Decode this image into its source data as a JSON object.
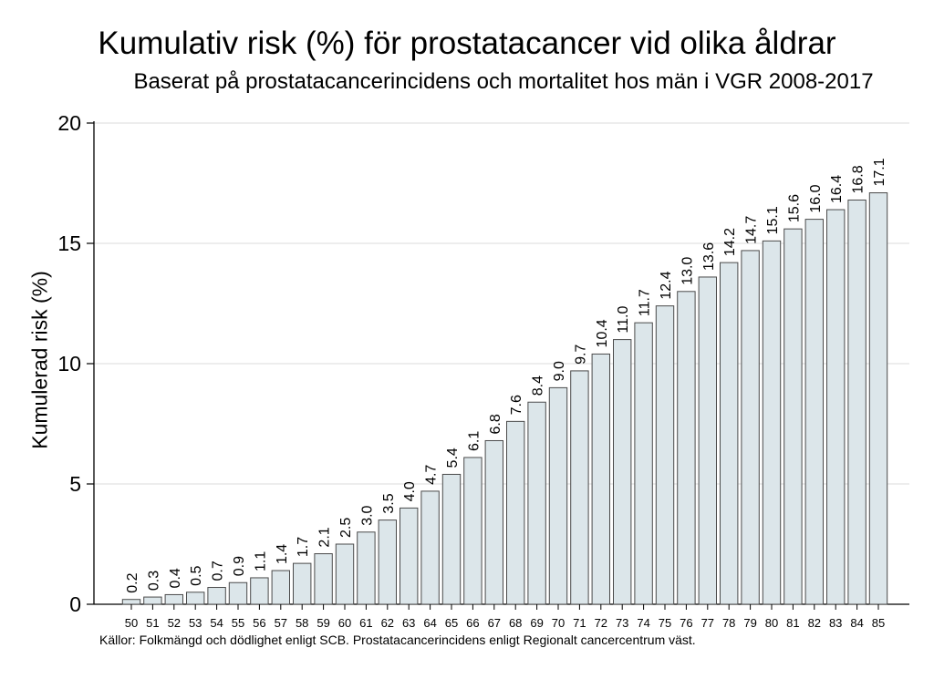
{
  "chart_data": {
    "type": "bar",
    "title": "Kumulativ risk (%) för prostatacancer vid olika åldrar",
    "subtitle": "Baserat på prostatacancerincidens och mortalitet hos män i VGR 2008-2017",
    "xlabel": "",
    "ylabel": "Kumulerad risk (%)",
    "ylim": [
      0,
      20
    ],
    "yticks": [
      "0",
      "5",
      "10",
      "15",
      "20"
    ],
    "categories": [
      "50",
      "51",
      "52",
      "53",
      "54",
      "55",
      "56",
      "57",
      "58",
      "59",
      "60",
      "61",
      "62",
      "63",
      "64",
      "65",
      "66",
      "67",
      "68",
      "69",
      "70",
      "71",
      "72",
      "73",
      "74",
      "75",
      "76",
      "77",
      "78",
      "79",
      "80",
      "81",
      "82",
      "83",
      "84",
      "85"
    ],
    "values": [
      0.2,
      0.3,
      0.4,
      0.5,
      0.7,
      0.9,
      1.1,
      1.4,
      1.7,
      2.1,
      2.5,
      3.0,
      3.5,
      4.0,
      4.7,
      5.4,
      6.1,
      6.8,
      7.6,
      8.4,
      9.0,
      9.7,
      10.4,
      11.0,
      11.7,
      12.4,
      13.0,
      13.6,
      14.2,
      14.7,
      15.1,
      15.6,
      16.0,
      16.4,
      16.8,
      17.1
    ],
    "value_labels": [
      "0.2",
      "0.3",
      "0.4",
      "0.5",
      "0.7",
      "0.9",
      "1.1",
      "1.4",
      "1.7",
      "2.1",
      "2.5",
      "3.0",
      "3.5",
      "4.0",
      "4.7",
      "5.4",
      "6.1",
      "6.8",
      "7.6",
      "8.4",
      "9.0",
      "9.7",
      "10.4",
      "11.0",
      "11.7",
      "12.4",
      "13.0",
      "13.6",
      "14.2",
      "14.7",
      "15.1",
      "15.6",
      "16.0",
      "16.4",
      "16.8",
      "17.1"
    ],
    "grid": true,
    "legend": "none",
    "colors": {
      "bar_fill": "#dce6ea",
      "bar_stroke": "#4a4a4a",
      "grid": "#e2e2e2",
      "axis": "#000000"
    },
    "source_note": "Källor: Folkmängd och dödlighet enligt SCB. Prostatacancerincidens enligt Regionalt cancercentrum väst."
  }
}
